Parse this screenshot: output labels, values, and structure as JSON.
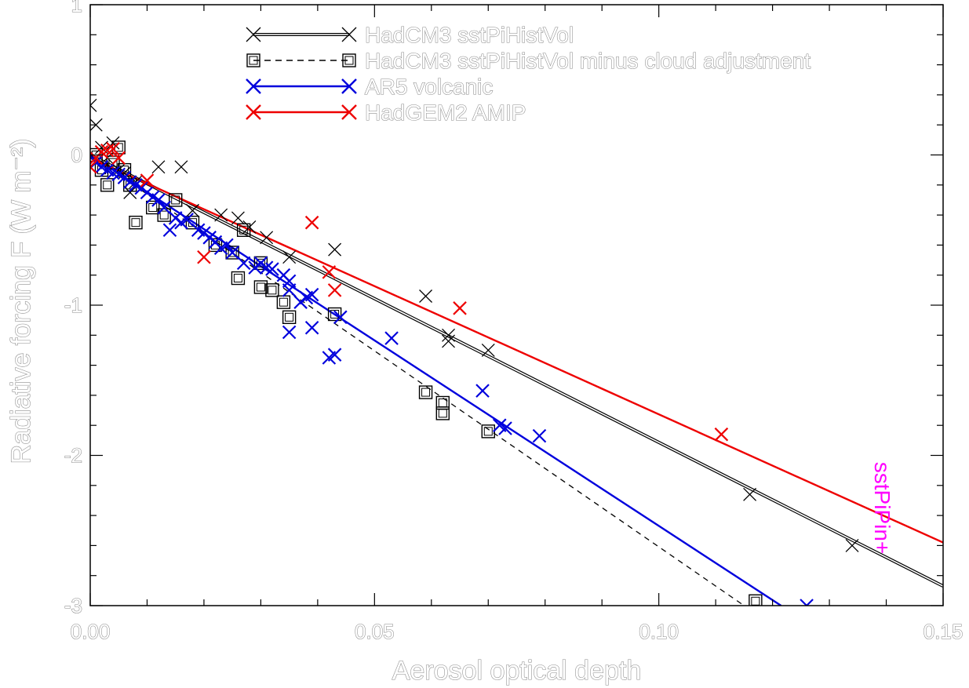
{
  "chart_data": {
    "type": "scatter",
    "xlabel": "Aerosol optical depth",
    "ylabel": "Radiative forcing F (W m⁻²)",
    "xlim": [
      0.0,
      0.15
    ],
    "ylim": [
      -3.0,
      1.0
    ],
    "xticks": [
      {
        "value": 0.0,
        "label": "0.00"
      },
      {
        "value": 0.05,
        "label": "0.05"
      },
      {
        "value": 0.1,
        "label": "0.10"
      },
      {
        "value": 0.15,
        "label": "0.15"
      }
    ],
    "yticks": [
      {
        "value": 1,
        "label": "1"
      },
      {
        "value": 0,
        "label": "0"
      },
      {
        "value": -1,
        "label": "-1"
      },
      {
        "value": -2,
        "label": "-2"
      },
      {
        "value": -3,
        "label": "-3"
      }
    ],
    "legend_position": "top",
    "series": [
      {
        "name": "HadCM3 sstPiHistVol",
        "color": "#000000",
        "marker": "x",
        "line": "double",
        "fit": [
          [
            0.0,
            0.0
          ],
          [
            0.15,
            -2.87
          ]
        ],
        "points": [
          [
            0.0,
            0.33
          ],
          [
            0.001,
            0.2
          ],
          [
            0.002,
            0.05
          ],
          [
            0.003,
            -0.02
          ],
          [
            0.004,
            0.08
          ],
          [
            0.005,
            -0.1
          ],
          [
            0.006,
            -0.12
          ],
          [
            0.007,
            -0.25
          ],
          [
            0.008,
            -0.18
          ],
          [
            0.012,
            -0.08
          ],
          [
            0.016,
            -0.08
          ],
          [
            0.018,
            -0.37
          ],
          [
            0.023,
            -0.4
          ],
          [
            0.026,
            -0.42
          ],
          [
            0.028,
            -0.48
          ],
          [
            0.031,
            -0.55
          ],
          [
            0.035,
            -0.68
          ],
          [
            0.043,
            -0.63
          ],
          [
            0.059,
            -0.94
          ],
          [
            0.063,
            -1.2
          ],
          [
            0.063,
            -1.24
          ],
          [
            0.07,
            -1.3
          ],
          [
            0.116,
            -2.26
          ],
          [
            0.134,
            -2.6
          ]
        ]
      },
      {
        "name": "HadCM3 sstPiHistVol minus cloud adjustment",
        "color": "#000000",
        "marker": "square",
        "line": "dashed",
        "fit": [
          [
            0.0,
            0.0
          ],
          [
            0.115,
            -3.0
          ]
        ],
        "points": [
          [
            0.001,
            0.0
          ],
          [
            0.002,
            -0.1
          ],
          [
            0.003,
            -0.2
          ],
          [
            0.004,
            -0.05
          ],
          [
            0.005,
            0.05
          ],
          [
            0.006,
            -0.1
          ],
          [
            0.007,
            -0.2
          ],
          [
            0.008,
            -0.45
          ],
          [
            0.011,
            -0.35
          ],
          [
            0.013,
            -0.4
          ],
          [
            0.015,
            -0.3
          ],
          [
            0.018,
            -0.45
          ],
          [
            0.022,
            -0.6
          ],
          [
            0.025,
            -0.65
          ],
          [
            0.026,
            -0.82
          ],
          [
            0.027,
            -0.5
          ],
          [
            0.03,
            -0.72
          ],
          [
            0.03,
            -0.88
          ],
          [
            0.032,
            -0.9
          ],
          [
            0.034,
            -0.98
          ],
          [
            0.035,
            -1.08
          ],
          [
            0.043,
            -1.06
          ],
          [
            0.059,
            -1.58
          ],
          [
            0.062,
            -1.65
          ],
          [
            0.062,
            -1.72
          ],
          [
            0.07,
            -1.84
          ],
          [
            0.117,
            -2.97
          ]
        ]
      },
      {
        "name": "AR5 volcanic",
        "color": "#0000dd",
        "marker": "x",
        "line": "solid",
        "fit": [
          [
            0.0,
            0.0
          ],
          [
            0.1215,
            -3.0
          ]
        ],
        "points": [
          [
            0.001,
            -0.05
          ],
          [
            0.002,
            -0.08
          ],
          [
            0.003,
            -0.1
          ],
          [
            0.004,
            -0.12
          ],
          [
            0.005,
            -0.13
          ],
          [
            0.006,
            -0.15
          ],
          [
            0.007,
            -0.18
          ],
          [
            0.008,
            -0.2
          ],
          [
            0.009,
            -0.22
          ],
          [
            0.01,
            -0.25
          ],
          [
            0.011,
            -0.28
          ],
          [
            0.012,
            -0.3
          ],
          [
            0.013,
            -0.35
          ],
          [
            0.014,
            -0.5
          ],
          [
            0.015,
            -0.42
          ],
          [
            0.016,
            -0.45
          ],
          [
            0.017,
            -0.43
          ],
          [
            0.019,
            -0.5
          ],
          [
            0.02,
            -0.52
          ],
          [
            0.021,
            -0.55
          ],
          [
            0.022,
            -0.58
          ],
          [
            0.023,
            -0.62
          ],
          [
            0.024,
            -0.6
          ],
          [
            0.025,
            -0.65
          ],
          [
            0.027,
            -0.72
          ],
          [
            0.029,
            -0.75
          ],
          [
            0.03,
            -0.72
          ],
          [
            0.031,
            -0.75
          ],
          [
            0.032,
            -0.76
          ],
          [
            0.034,
            -0.8
          ],
          [
            0.035,
            -0.84
          ],
          [
            0.035,
            -0.9
          ],
          [
            0.035,
            -1.18
          ],
          [
            0.037,
            -0.98
          ],
          [
            0.038,
            -0.95
          ],
          [
            0.039,
            -0.93
          ],
          [
            0.039,
            -1.15
          ],
          [
            0.042,
            -1.35
          ],
          [
            0.043,
            -1.33
          ],
          [
            0.044,
            -1.08
          ],
          [
            0.053,
            -1.22
          ],
          [
            0.069,
            -1.57
          ],
          [
            0.072,
            -1.8
          ],
          [
            0.073,
            -1.82
          ],
          [
            0.079,
            -1.87
          ],
          [
            0.126,
            -3.0
          ]
        ]
      },
      {
        "name": "HadGEM2 AMIP",
        "color": "#ee0000",
        "marker": "x",
        "line": "solid",
        "fit": [
          [
            0.0,
            -0.02
          ],
          [
            0.15,
            -2.58
          ]
        ],
        "points": [
          [
            0.0,
            -0.08
          ],
          [
            0.001,
            -0.02
          ],
          [
            0.002,
            0.02
          ],
          [
            0.003,
            0.03
          ],
          [
            0.004,
            0.04
          ],
          [
            0.005,
            -0.02
          ],
          [
            0.01,
            -0.17
          ],
          [
            0.02,
            -0.68
          ],
          [
            0.039,
            -0.45
          ],
          [
            0.042,
            -0.78
          ],
          [
            0.043,
            -0.9
          ],
          [
            0.065,
            -1.02
          ],
          [
            0.111,
            -1.86
          ]
        ]
      }
    ],
    "annotations": [
      {
        "text": "sstPiPin+",
        "x": 0.138,
        "y": -2.35,
        "color": "#ff00ff",
        "rotation": 90
      }
    ]
  }
}
